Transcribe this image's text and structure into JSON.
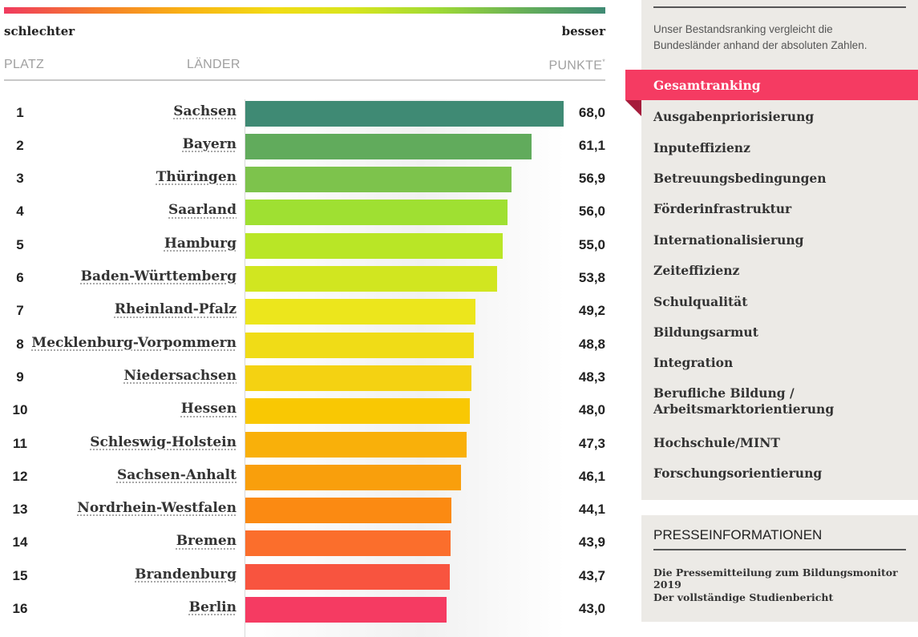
{
  "legend": {
    "worse": "schlechter",
    "better": "besser"
  },
  "headers": {
    "rank": "PLATZ",
    "states": "LÄNDER",
    "points": "PUNKTE",
    "points_mark": "*"
  },
  "chart_data": {
    "type": "bar",
    "orientation": "horizontal",
    "xlim": [
      0,
      68
    ],
    "ranks": [
      "1",
      "2",
      "3",
      "4",
      "5",
      "6",
      "7",
      "8",
      "9",
      "10",
      "11",
      "12",
      "13",
      "14",
      "15",
      "16"
    ],
    "categories": [
      "Sachsen",
      "Bayern",
      "Thüringen",
      "Saarland",
      "Hamburg",
      "Baden-Württemberg",
      "Rheinland-Pfalz",
      "Mecklenburg-Vorpommern",
      "Niedersachsen",
      "Hessen",
      "Schleswig-Holstein",
      "Sachsen-Anhalt",
      "Nordrhein-Westfalen",
      "Bremen",
      "Brandenburg",
      "Berlin"
    ],
    "values": [
      68.0,
      61.1,
      56.9,
      56.0,
      55.0,
      53.8,
      49.2,
      48.8,
      48.3,
      48.0,
      47.3,
      46.1,
      44.1,
      43.9,
      43.7,
      43.0
    ],
    "value_labels": [
      "68,0",
      "61,1",
      "56,9",
      "56,0",
      "55,0",
      "53,8",
      "49,2",
      "48,8",
      "48,3",
      "48,0",
      "47,3",
      "46,1",
      "44,1",
      "43,9",
      "43,7",
      "43,0"
    ],
    "colors": [
      "#3f8a74",
      "#61ab5c",
      "#7dc34c",
      "#9fe032",
      "#b9e626",
      "#d1e620",
      "#ece61c",
      "#f0dc17",
      "#f4d212",
      "#f9c803",
      "#f9b00a",
      "#f99f0c",
      "#fb8a12",
      "#fb6e2c",
      "#f8543f",
      "#f53b62"
    ]
  },
  "sidebar": {
    "intro": "Unser Bestandsranking vergleicht die Bundesländer anhand der absoluten Zahlen.",
    "accent": "#f53b62",
    "active_index": 0,
    "items": [
      "Gesamtranking",
      "Ausgabenpriorisierung",
      "Inputeffizienz",
      "Betreuungsbedingungen",
      "Förderinfrastruktur",
      "Internationalisierung",
      "Zeiteffizienz",
      "Schulqualität",
      "Bildungsarmut",
      "Integration",
      "Berufliche Bildung / Arbeitsmarktorientierung",
      "Hochschule/MINT",
      "Forschungsorientierung"
    ]
  },
  "press": {
    "title": "PRESSEINFORMATIONEN",
    "links": [
      "Die Pressemitteilung zum Bildungsmonitor 2019",
      "Der vollständige Studienbericht"
    ]
  }
}
